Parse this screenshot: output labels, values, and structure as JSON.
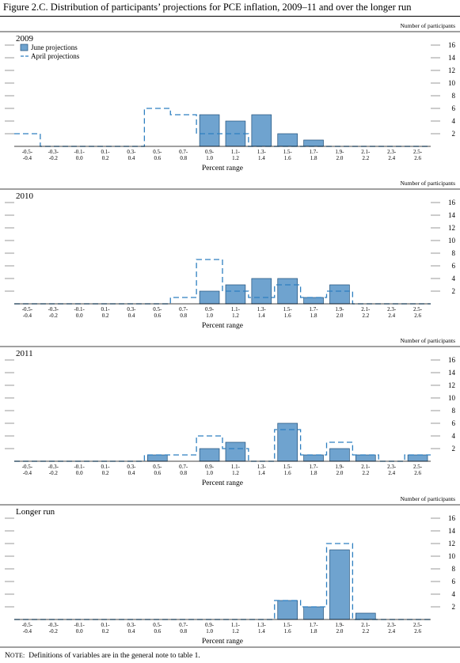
{
  "figure": {
    "title": "Figure 2.C. Distribution of participants’ projections for PCE inflation, 2009–11 and over the longer run",
    "note_label_first": "N",
    "note_label_rest": "OTE:",
    "note_text": "Definitions of variables are in the general note to table 1."
  },
  "chart_data": [
    {
      "type": "bar",
      "title": "2009",
      "xlabel": "Percent range",
      "ylabel": "Number of participants",
      "ylim": [
        0,
        16
      ],
      "yticks": [
        2,
        4,
        6,
        8,
        10,
        12,
        14,
        16
      ],
      "categories": [
        [
          "-0.5-",
          "-0.4"
        ],
        [
          "-0.3-",
          "-0.2"
        ],
        [
          "-0.1-",
          "0.0"
        ],
        [
          "0.1-",
          "0.2"
        ],
        [
          "0.3-",
          "0.4"
        ],
        [
          "0.5-",
          "0.6"
        ],
        [
          "0.7-",
          "0.8"
        ],
        [
          "0.9-",
          "1.0"
        ],
        [
          "1.1-",
          "1.2"
        ],
        [
          "1.3-",
          "1.4"
        ],
        [
          "1.5-",
          "1.6"
        ],
        [
          "1.7-",
          "1.8"
        ],
        [
          "1.9-",
          "2.0"
        ],
        [
          "2.1-",
          "2.2"
        ],
        [
          "2.3-",
          "2.4"
        ],
        [
          "2.5-",
          "2.6"
        ]
      ],
      "series": [
        {
          "name": "June projections",
          "style": "bar",
          "color": "#6fa3cf",
          "values": [
            0,
            0,
            0,
            0,
            0,
            0,
            0,
            5,
            4,
            5,
            2,
            1,
            0,
            0,
            0,
            0
          ]
        },
        {
          "name": "April projections",
          "style": "dashed-step",
          "color": "#2e7fc0",
          "values": [
            2,
            0,
            0,
            0,
            0,
            6,
            5,
            2,
            2,
            0,
            0,
            0,
            0,
            0,
            0,
            0
          ]
        }
      ],
      "legend": "top-left"
    },
    {
      "type": "bar",
      "title": "2010",
      "xlabel": "Percent range",
      "ylabel": "Number of participants",
      "ylim": [
        0,
        16
      ],
      "yticks": [
        2,
        4,
        6,
        8,
        10,
        12,
        14,
        16
      ],
      "categories": [
        [
          "-0.5-",
          "-0.4"
        ],
        [
          "-0.3-",
          "-0.2"
        ],
        [
          "-0.1-",
          "0.0"
        ],
        [
          "0.1-",
          "0.2"
        ],
        [
          "0.3-",
          "0.4"
        ],
        [
          "0.5-",
          "0.6"
        ],
        [
          "0.7-",
          "0.8"
        ],
        [
          "0.9-",
          "1.0"
        ],
        [
          "1.1-",
          "1.2"
        ],
        [
          "1.3-",
          "1.4"
        ],
        [
          "1.5-",
          "1.6"
        ],
        [
          "1.7-",
          "1.8"
        ],
        [
          "1.9-",
          "2.0"
        ],
        [
          "2.1-",
          "2.2"
        ],
        [
          "2.3-",
          "2.4"
        ],
        [
          "2.5-",
          "2.6"
        ]
      ],
      "series": [
        {
          "name": "June projections",
          "style": "bar",
          "color": "#6fa3cf",
          "values": [
            0,
            0,
            0,
            0,
            0,
            0,
            0,
            2,
            3,
            4,
            4,
            1,
            3,
            0,
            0,
            0
          ]
        },
        {
          "name": "April projections",
          "style": "dashed-step",
          "color": "#2e7fc0",
          "values": [
            0,
            0,
            0,
            0,
            0,
            0,
            1,
            7,
            2,
            1,
            3,
            1,
            2,
            0,
            0,
            0
          ]
        }
      ]
    },
    {
      "type": "bar",
      "title": "2011",
      "xlabel": "Percent range",
      "ylabel": "Number of participants",
      "ylim": [
        0,
        16
      ],
      "yticks": [
        2,
        4,
        6,
        8,
        10,
        12,
        14,
        16
      ],
      "categories": [
        [
          "-0.5-",
          "-0.4"
        ],
        [
          "-0.3-",
          "-0.2"
        ],
        [
          "-0.1-",
          "0.0"
        ],
        [
          "0.1-",
          "0.2"
        ],
        [
          "0.3-",
          "0.4"
        ],
        [
          "0.5-",
          "0.6"
        ],
        [
          "0.7-",
          "0.8"
        ],
        [
          "0.9-",
          "1.0"
        ],
        [
          "1.1-",
          "1.2"
        ],
        [
          "1.3-",
          "1.4"
        ],
        [
          "1.5-",
          "1.6"
        ],
        [
          "1.7-",
          "1.8"
        ],
        [
          "1.9-",
          "2.0"
        ],
        [
          "2.1-",
          "2.2"
        ],
        [
          "2.3-",
          "2.4"
        ],
        [
          "2.5-",
          "2.6"
        ]
      ],
      "series": [
        {
          "name": "June projections",
          "style": "bar",
          "color": "#6fa3cf",
          "values": [
            0,
            0,
            0,
            0,
            0,
            1,
            0,
            2,
            3,
            0,
            6,
            1,
            2,
            1,
            0,
            1
          ]
        },
        {
          "name": "April projections",
          "style": "dashed-step",
          "color": "#2e7fc0",
          "values": [
            0,
            0,
            0,
            0,
            0,
            1,
            1,
            4,
            2,
            0,
            5,
            1,
            3,
            1,
            0,
            1
          ]
        }
      ]
    },
    {
      "type": "bar",
      "title": "Longer run",
      "xlabel": "Percent range",
      "ylabel": "Number of participants",
      "ylim": [
        0,
        16
      ],
      "yticks": [
        2,
        4,
        6,
        8,
        10,
        12,
        14,
        16
      ],
      "categories": [
        [
          "-0.5-",
          "-0.4"
        ],
        [
          "-0.3-",
          "-0.2"
        ],
        [
          "-0.1-",
          "0.0"
        ],
        [
          "0.1-",
          "0.2"
        ],
        [
          "0.3-",
          "0.4"
        ],
        [
          "0.5-",
          "0.6"
        ],
        [
          "0.7-",
          "0.8"
        ],
        [
          "0.9-",
          "1.0"
        ],
        [
          "1.1-",
          "1.2"
        ],
        [
          "1.3-",
          "1.4"
        ],
        [
          "1.5-",
          "1.6"
        ],
        [
          "1.7-",
          "1.8"
        ],
        [
          "1.9-",
          "2.0"
        ],
        [
          "2.1-",
          "2.2"
        ],
        [
          "2.3-",
          "2.4"
        ],
        [
          "2.5-",
          "2.6"
        ]
      ],
      "series": [
        {
          "name": "June projections",
          "style": "bar",
          "color": "#6fa3cf",
          "values": [
            0,
            0,
            0,
            0,
            0,
            0,
            0,
            0,
            0,
            0,
            3,
            2,
            11,
            1,
            0,
            0
          ]
        },
        {
          "name": "April projections",
          "style": "dashed-step",
          "color": "#2e7fc0",
          "values": [
            0,
            0,
            0,
            0,
            0,
            0,
            0,
            0,
            0,
            0,
            3,
            2,
            12,
            0,
            0,
            0
          ]
        }
      ]
    }
  ]
}
